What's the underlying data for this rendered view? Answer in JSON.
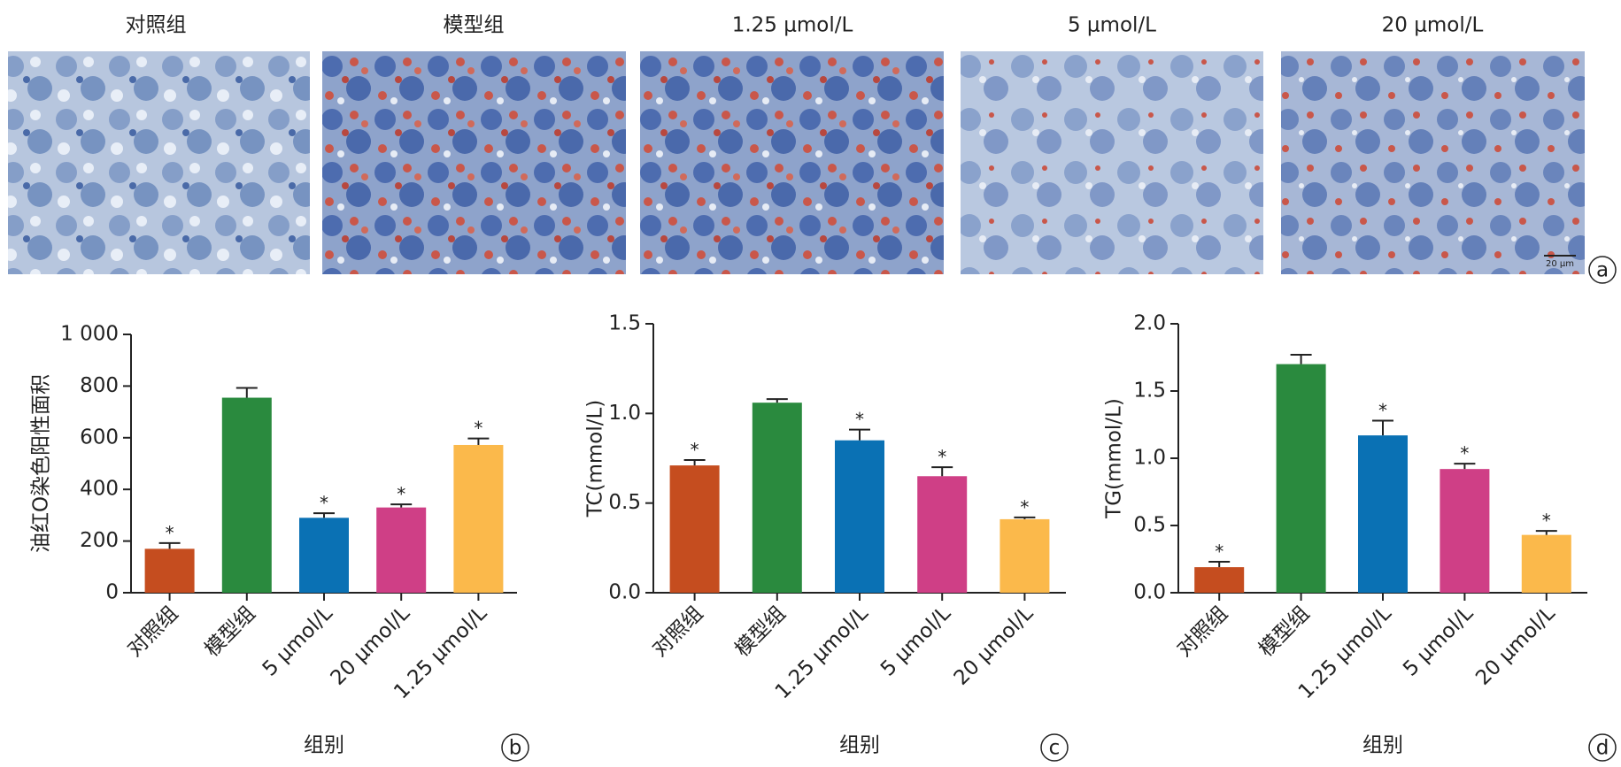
{
  "micrographs": {
    "labels": [
      "对照组",
      "模型组",
      "1.25 μmol/L",
      "5 μmol/L",
      "20 μmol/L"
    ],
    "scale_bar": "20 μm",
    "panel_label": "a"
  },
  "chart_data": [
    {
      "type": "bar",
      "panel_label": "b",
      "y_label": "油红O染色阳性面积",
      "x_label": "组别",
      "categories": [
        "对照组",
        "模型组",
        "5 μmol/L",
        "20 μmol/L",
        "1.25 μmol/L"
      ],
      "values": [
        170,
        755,
        290,
        330,
        572
      ],
      "errors": [
        22,
        38,
        18,
        12,
        25
      ],
      "markers": [
        "*",
        null,
        "*",
        "*",
        "*"
      ],
      "colors": [
        "#c54d1f",
        "#2a8a3e",
        "#0a71b4",
        "#cf3f86",
        "#fbb94b"
      ],
      "ylim": [
        0,
        1000
      ],
      "yticks": [
        0,
        200,
        400,
        600,
        800,
        {
          "value": 1000,
          "label": "1 000"
        }
      ]
    },
    {
      "type": "bar",
      "panel_label": "c",
      "y_label": "TC(mmol/L)",
      "x_label": "组别",
      "categories": [
        "对照组",
        "模型组",
        "1.25 μmol/L",
        "5 μmol/L",
        "20 μmol/L"
      ],
      "values": [
        0.71,
        1.06,
        0.85,
        0.65,
        0.41
      ],
      "errors": [
        0.03,
        0.02,
        0.06,
        0.05,
        0.01
      ],
      "markers": [
        "*",
        null,
        "*",
        "*",
        "*"
      ],
      "colors": [
        "#c54d1f",
        "#2a8a3e",
        "#0a71b4",
        "#cf3f86",
        "#fbb94b"
      ],
      "ylim": [
        0,
        1.5
      ],
      "yticks": [
        {
          "value": 0,
          "label": "0.0"
        },
        0.5,
        {
          "value": 1,
          "label": "1.0"
        },
        1.5
      ]
    },
    {
      "type": "bar",
      "panel_label": "d",
      "y_label": "TG(mmol/L)",
      "x_label": "组别",
      "categories": [
        "对照组",
        "模型组",
        "1.25 μmol/L",
        "5 μmol/L",
        "20 μmol/L"
      ],
      "values": [
        0.19,
        1.7,
        1.17,
        0.92,
        0.43
      ],
      "errors": [
        0.04,
        0.07,
        0.11,
        0.04,
        0.03
      ],
      "markers": [
        "*",
        null,
        "*",
        "*",
        "*"
      ],
      "colors": [
        "#c54d1f",
        "#2a8a3e",
        "#0a71b4",
        "#cf3f86",
        "#fbb94b"
      ],
      "ylim": [
        0,
        2
      ],
      "yticks": [
        {
          "value": 0,
          "label": "0.0"
        },
        0.5,
        {
          "value": 1,
          "label": "1.0"
        },
        1.5,
        {
          "value": 2,
          "label": "2.0"
        }
      ]
    }
  ]
}
